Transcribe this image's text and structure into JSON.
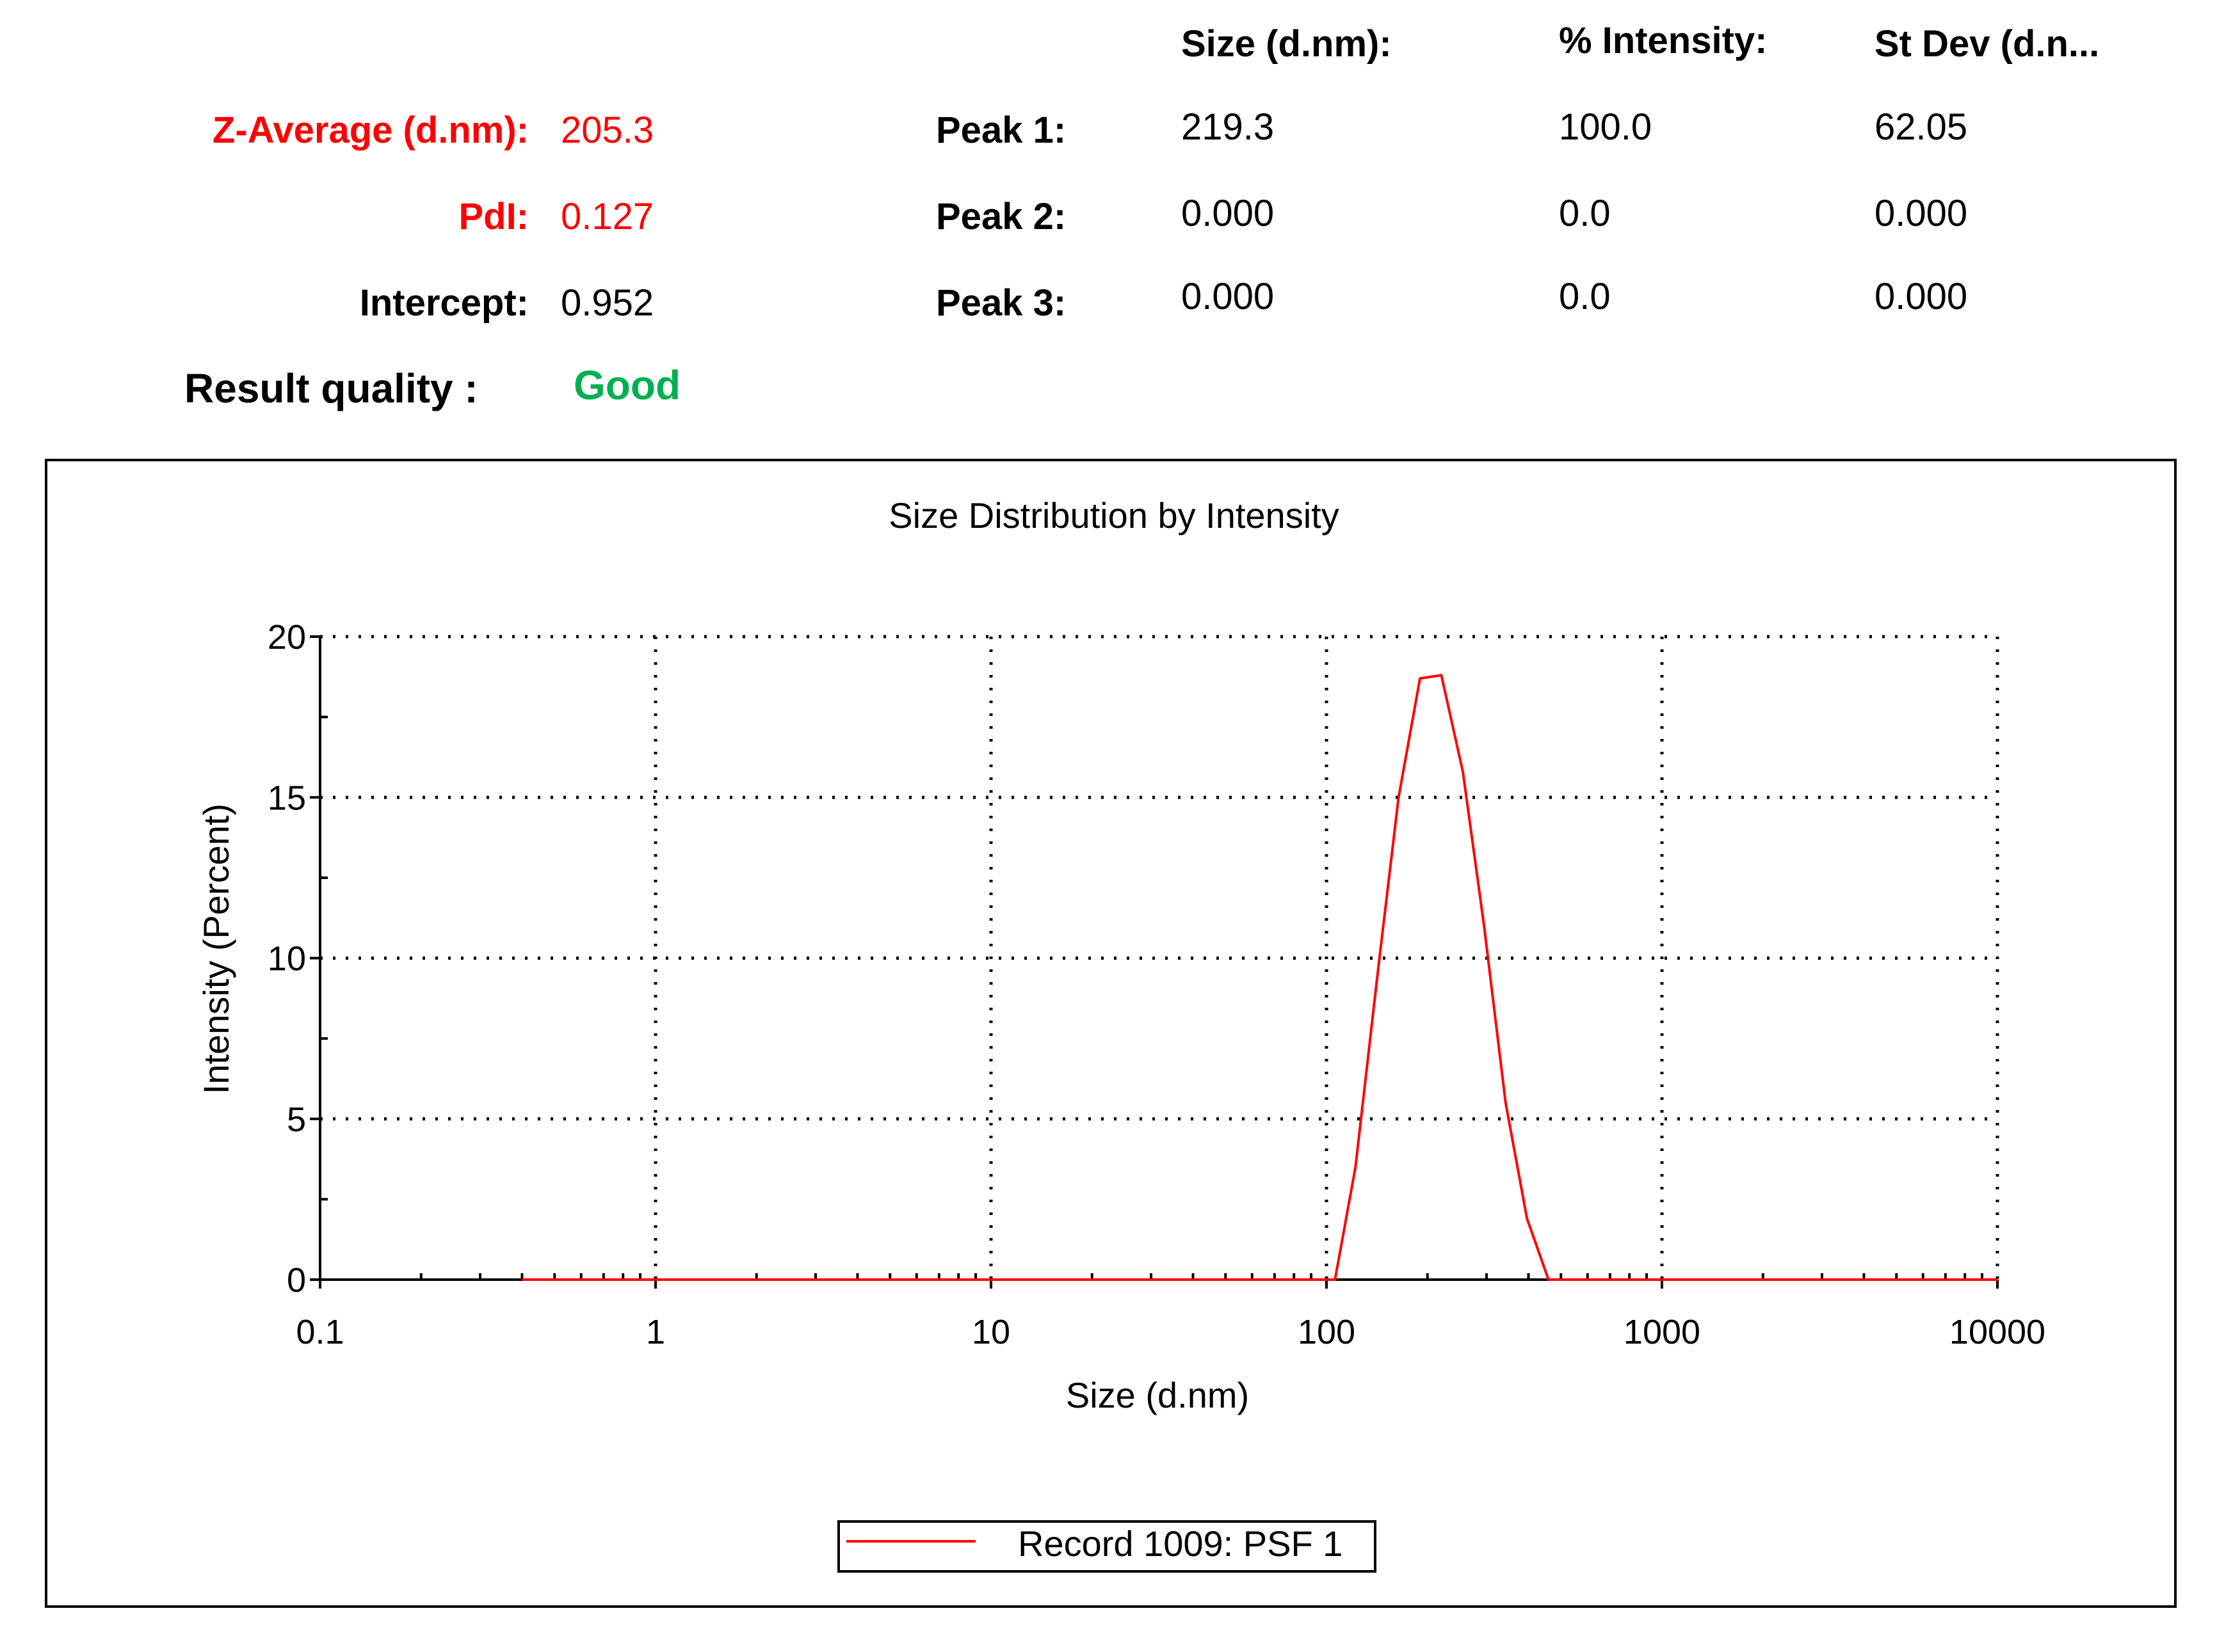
{
  "summary": {
    "z_average": {
      "label": "Z-Average (d.nm):",
      "value": "205.3"
    },
    "pdi": {
      "label": "PdI:",
      "value": "0.127"
    },
    "intercept": {
      "label": "Intercept:",
      "value": "0.952"
    },
    "result_quality": {
      "label": "Result quality :",
      "value": "Good"
    },
    "colors": {
      "highlight": "#ff0000",
      "good": "#00b050"
    }
  },
  "peaks_table": {
    "headers": [
      "Size (d.nm):",
      "% Intensity:",
      "St Dev (d.n..."
    ],
    "rows": [
      {
        "label": "Peak 1:",
        "size": "219.3",
        "intensity": "100.0",
        "stdev": "62.05"
      },
      {
        "label": "Peak 2:",
        "size": "0.000",
        "intensity": "0.0",
        "stdev": "0.000"
      },
      {
        "label": "Peak 3:",
        "size": "0.000",
        "intensity": "0.0",
        "stdev": "0.000"
      }
    ]
  },
  "chart_data": {
    "type": "line",
    "title": "Size Distribution by Intensity",
    "xlabel": "Size (d.nm)",
    "ylabel": "Intensity (Percent)",
    "x_scale": "log",
    "xlim": [
      0.1,
      10000
    ],
    "ylim": [
      0,
      20
    ],
    "x_ticks": [
      "0.1",
      "1",
      "10",
      "100",
      "1000",
      "10000"
    ],
    "y_ticks": [
      "0",
      "5",
      "10",
      "15",
      "20"
    ],
    "grid": true,
    "legend_position": "bottom-center",
    "series": [
      {
        "name": "Record 1009: PSF 1",
        "color": "#ff0000",
        "x": [
          0.4,
          1,
          10,
          100,
          106,
          122,
          142,
          164,
          190,
          220,
          255,
          295,
          342,
          396,
          459,
          531,
          1000,
          10000
        ],
        "y": [
          0,
          0,
          0,
          0,
          0,
          3.5,
          9.5,
          15.0,
          18.7,
          18.8,
          15.8,
          11.0,
          5.5,
          1.9,
          0,
          0,
          0,
          0
        ]
      }
    ]
  }
}
